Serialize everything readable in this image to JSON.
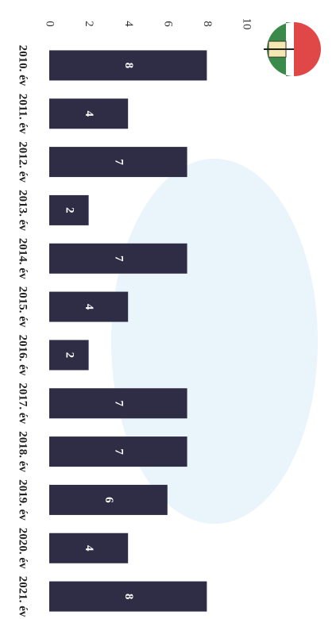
{
  "chart_data": {
    "type": "bar",
    "orientation": "horizontal",
    "categories": [
      "2010. év",
      "2011. év",
      "2012. év",
      "2013. év",
      "2014. év",
      "2015. év",
      "2016. év",
      "2017. év",
      "2018. év",
      "2019. év",
      "2020. év",
      "2021. év"
    ],
    "values": [
      8,
      4,
      7,
      2,
      7,
      4,
      2,
      7,
      7,
      6,
      4,
      8
    ],
    "color": "#2e2d45",
    "ylim": [
      0,
      10
    ],
    "yticks": [
      0,
      2,
      4,
      6,
      8,
      10
    ],
    "grid": false
  }
}
